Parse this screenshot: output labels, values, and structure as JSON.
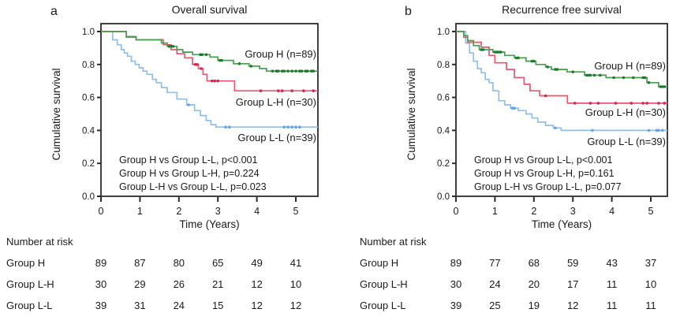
{
  "colors": {
    "axis": "#2b2b2b",
    "text": "#1a1a1a",
    "group_h": "#4a9e4f",
    "group_h_censor": "#1f7a30",
    "group_lh": "#e9566e",
    "group_lh_censor": "#d62550",
    "group_ll": "#8fbfec",
    "group_ll_censor": "#64a2e4"
  },
  "chart_data": [
    {
      "type": "line",
      "subtype": "kaplan_meier_step",
      "panel_letter": "a",
      "title": "Overall survival",
      "xlabel": "Time (Years)",
      "ylabel": "Cumulative survival",
      "xticks": [
        0,
        1,
        2,
        3,
        4,
        5
      ],
      "ytick_labels": [
        "1.0",
        "0.8",
        "0.6",
        "0.4",
        "0.2",
        "0.0"
      ],
      "yticks": [
        1.0,
        0.8,
        0.6,
        0.4,
        0.2,
        0.0
      ],
      "xlim": [
        0,
        5.5
      ],
      "ylim": [
        0,
        1.04
      ],
      "grid": false,
      "legend_position": "inline-right",
      "series": [
        {
          "name": "Group H",
          "n": 89,
          "label": "Group H (n=89)",
          "color": "#4a9e4f",
          "censor_color": "#1f7a30",
          "steps": [
            [
              0,
              1.0
            ],
            [
              0.65,
              0.97
            ],
            [
              0.9,
              0.95
            ],
            [
              1.55,
              0.93
            ],
            [
              1.7,
              0.91
            ],
            [
              1.95,
              0.89
            ],
            [
              2.1,
              0.875
            ],
            [
              2.35,
              0.86
            ],
            [
              2.8,
              0.845
            ],
            [
              3.0,
              0.825
            ],
            [
              3.4,
              0.805
            ],
            [
              3.8,
              0.79
            ],
            [
              4.07,
              0.775
            ],
            [
              4.25,
              0.76
            ]
          ],
          "censor_times": [
            1.75,
            1.8,
            1.85,
            2.55,
            2.6,
            2.7,
            3.05,
            3.1,
            3.55,
            3.85,
            4.4,
            4.5,
            4.55,
            4.65,
            4.7,
            4.8,
            4.9,
            5.0,
            5.1,
            5.15,
            5.25,
            5.3,
            5.4,
            5.45
          ]
        },
        {
          "name": "Group L-H",
          "n": 30,
          "label": "Group L-H (n=30)",
          "color": "#e9566e",
          "censor_color": "#d62550",
          "steps": [
            [
              0,
              1.0
            ],
            [
              0.65,
              0.965
            ],
            [
              0.9,
              0.95
            ],
            [
              1.6,
              0.92
            ],
            [
              1.8,
              0.89
            ],
            [
              1.95,
              0.865
            ],
            [
              2.15,
              0.84
            ],
            [
              2.35,
              0.8
            ],
            [
              2.5,
              0.775
            ],
            [
              2.62,
              0.74
            ],
            [
              2.72,
              0.7
            ],
            [
              3.43,
              0.64
            ]
          ],
          "censor_times": [
            2.42,
            2.47,
            2.57,
            2.85,
            2.92,
            3.0,
            4.1,
            4.55,
            4.65,
            4.9,
            5.2,
            5.45
          ]
        },
        {
          "name": "Group L-L",
          "n": 39,
          "label": "Group L-L (n=39)",
          "color": "#8fbfec",
          "censor_color": "#64a2e4",
          "steps": [
            [
              0,
              1.0
            ],
            [
              0.3,
              0.95
            ],
            [
              0.42,
              0.92
            ],
            [
              0.52,
              0.89
            ],
            [
              0.6,
              0.87
            ],
            [
              0.68,
              0.85
            ],
            [
              0.78,
              0.82
            ],
            [
              0.88,
              0.8
            ],
            [
              0.98,
              0.78
            ],
            [
              1.08,
              0.76
            ],
            [
              1.18,
              0.74
            ],
            [
              1.32,
              0.71
            ],
            [
              1.42,
              0.69
            ],
            [
              1.55,
              0.66
            ],
            [
              1.7,
              0.63
            ],
            [
              1.95,
              0.59
            ],
            [
              2.2,
              0.555
            ],
            [
              2.4,
              0.52
            ],
            [
              2.55,
              0.49
            ],
            [
              2.7,
              0.46
            ],
            [
              2.82,
              0.435
            ],
            [
              2.95,
              0.42
            ]
          ],
          "censor_times": [
            2.25,
            3.2,
            3.3,
            4.7,
            4.8,
            4.9,
            5.0,
            5.1
          ]
        }
      ],
      "pvalue_annotations": [
        "Group H vs Group L-L, p<0.001",
        "Group H vs Group L-H, p=0.224",
        "Group L-H vs Group L-L, p=0.023"
      ],
      "risk_table": {
        "heading": "Number at risk",
        "time_points": [
          0,
          1,
          2,
          3,
          4,
          5
        ],
        "rows": [
          {
            "label": "Group H",
            "values": [
              "89",
              "87",
              "80",
              "65",
              "49",
              "41"
            ]
          },
          {
            "label": "Group L-H",
            "values": [
              "30",
              "29",
              "26",
              "21",
              "12",
              "10"
            ]
          },
          {
            "label": "Group L-L",
            "values": [
              "39",
              "31",
              "24",
              "15",
              "12",
              "12"
            ]
          }
        ]
      }
    },
    {
      "type": "line",
      "subtype": "kaplan_meier_step",
      "panel_letter": "b",
      "title": "Recurrence free survival",
      "xlabel": "Time (Years)",
      "ylabel": "Cumulative survival",
      "xticks": [
        0,
        1,
        2,
        3,
        4,
        5
      ],
      "ytick_labels": [
        "1.0",
        "0.8",
        "0.6",
        "0.4",
        "0.2",
        "0.0"
      ],
      "yticks": [
        1.0,
        0.8,
        0.6,
        0.4,
        0.2,
        0.0
      ],
      "xlim": [
        0,
        5.4
      ],
      "ylim": [
        0,
        1.04
      ],
      "grid": false,
      "legend_position": "inline-right",
      "series": [
        {
          "name": "Group H",
          "n": 89,
          "label": "Group H (n=89)",
          "color": "#4a9e4f",
          "censor_color": "#1f7a30",
          "steps": [
            [
              0,
              1.0
            ],
            [
              0.2,
              0.975
            ],
            [
              0.3,
              0.945
            ],
            [
              0.45,
              0.915
            ],
            [
              0.6,
              0.89
            ],
            [
              0.95,
              0.875
            ],
            [
              1.25,
              0.855
            ],
            [
              1.5,
              0.84
            ],
            [
              1.8,
              0.82
            ],
            [
              2.05,
              0.8
            ],
            [
              2.3,
              0.785
            ],
            [
              2.45,
              0.77
            ],
            [
              2.85,
              0.755
            ],
            [
              3.3,
              0.735
            ],
            [
              3.85,
              0.72
            ],
            [
              4.9,
              0.69
            ],
            [
              5.2,
              0.665
            ]
          ],
          "censor_times": [
            0.65,
            0.7,
            1.0,
            1.05,
            1.1,
            1.15,
            1.55,
            1.6,
            1.95,
            2.0,
            2.35,
            2.55,
            2.6,
            3.0,
            3.35,
            3.4,
            3.45,
            3.55,
            3.7,
            4.05,
            4.3,
            4.55,
            4.8,
            4.85,
            4.95,
            5.25,
            5.3,
            5.35
          ]
        },
        {
          "name": "Group L-H",
          "n": 30,
          "label": "Group L-H (n=30)",
          "color": "#e9566e",
          "censor_color": "#d62550",
          "steps": [
            [
              0,
              1.0
            ],
            [
              0.2,
              0.965
            ],
            [
              0.3,
              0.935
            ],
            [
              0.65,
              0.905
            ],
            [
              0.85,
              0.855
            ],
            [
              1.0,
              0.81
            ],
            [
              1.3,
              0.77
            ],
            [
              1.5,
              0.72
            ],
            [
              1.75,
              0.68
            ],
            [
              1.9,
              0.64
            ],
            [
              2.15,
              0.61
            ],
            [
              2.86,
              0.565
            ]
          ],
          "censor_times": [
            2.3,
            3.05,
            3.45,
            3.65,
            4.1,
            4.5,
            4.8,
            4.9,
            5.2,
            5.35
          ]
        },
        {
          "name": "Group L-L",
          "n": 39,
          "label": "Group L-L (n=39)",
          "color": "#8fbfec",
          "censor_color": "#64a2e4",
          "steps": [
            [
              0,
              1.0
            ],
            [
              0.25,
              0.93
            ],
            [
              0.35,
              0.87
            ],
            [
              0.45,
              0.82
            ],
            [
              0.55,
              0.775
            ],
            [
              0.65,
              0.75
            ],
            [
              0.75,
              0.71
            ],
            [
              0.85,
              0.69
            ],
            [
              0.95,
              0.64
            ],
            [
              1.1,
              0.58
            ],
            [
              1.25,
              0.555
            ],
            [
              1.4,
              0.535
            ],
            [
              1.6,
              0.52
            ],
            [
              1.8,
              0.5
            ],
            [
              1.95,
              0.475
            ],
            [
              2.1,
              0.45
            ],
            [
              2.3,
              0.43
            ],
            [
              2.5,
              0.415
            ],
            [
              2.7,
              0.4
            ]
          ],
          "censor_times": [
            1.45,
            1.5,
            2.55,
            3.5,
            4.95,
            5.15,
            5.2,
            5.3
          ]
        }
      ],
      "pvalue_annotations": [
        "Group H vs Group L-L, p<0.001",
        "Group H vs Group L-H, p=0.161",
        "Group L-H vs Group L-L, p=0.077"
      ],
      "risk_table": {
        "heading": "Number at risk",
        "time_points": [
          0,
          1,
          2,
          3,
          4,
          5
        ],
        "rows": [
          {
            "label": "Group H",
            "values": [
              "89",
              "77",
              "68",
              "59",
              "43",
              "37"
            ]
          },
          {
            "label": "Group L-H",
            "values": [
              "30",
              "24",
              "20",
              "17",
              "11",
              "10"
            ]
          },
          {
            "label": "Group L-L",
            "values": [
              "39",
              "25",
              "19",
              "12",
              "11",
              "11"
            ]
          }
        ]
      }
    }
  ]
}
